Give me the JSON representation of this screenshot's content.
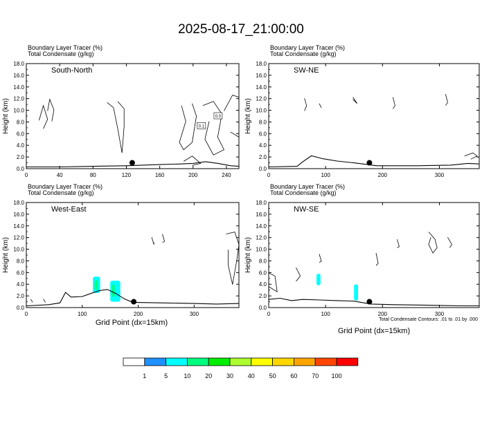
{
  "title": "2025-08-17_21:00:00",
  "panel_header_line1": "Boundary Layer Tracer   (%)",
  "panel_header_line2": "Total Condensate   (g/kg)",
  "y_axis_label": "Height (km)",
  "x_axis_label": "Grid Point (dx=15km)",
  "contour_note": "Total Condensate Contours: .01 to .01 by .000",
  "colors": {
    "terrain": "#000000",
    "contour": "#000000",
    "marker": "#000000"
  },
  "chart_data": [
    {
      "type": "area",
      "panel": "South-North",
      "label": "South-North",
      "xlim": [
        0,
        255
      ],
      "ylim": [
        0,
        18
      ],
      "x_ticks": [
        0,
        40,
        80,
        120,
        160,
        200,
        240
      ],
      "y_ticks": [
        "0.0",
        "2.0",
        "4.0",
        "6.0",
        "8.0",
        "10.0",
        "12.0",
        "14.0",
        "16.0",
        "18.0"
      ],
      "terrain": [
        [
          0,
          0.3
        ],
        [
          40,
          0.3
        ],
        [
          80,
          0.4
        ],
        [
          120,
          0.5
        ],
        [
          160,
          0.7
        ],
        [
          185,
          0.8
        ],
        [
          200,
          0.9
        ],
        [
          215,
          1.2
        ],
        [
          230,
          0.9
        ],
        [
          245,
          0.5
        ],
        [
          255,
          0.4
        ]
      ],
      "marker": {
        "x": 127,
        "y": 1.0
      },
      "contour_labels": [
        {
          "text": "0.0",
          "x": 230,
          "y": 9.0
        },
        {
          "text": "0.1",
          "x": 210,
          "y": 7.3
        }
      ],
      "tracer_blobs": []
    },
    {
      "type": "area",
      "panel": "SW-NE",
      "label": "SW-NE",
      "xlim": [
        0,
        370
      ],
      "ylim": [
        0,
        18
      ],
      "x_ticks": [
        0,
        100,
        200,
        300
      ],
      "y_ticks": [
        "0.0",
        "2.0",
        "4.0",
        "6.0",
        "8.0",
        "10.0",
        "12.0",
        "14.0",
        "16.0",
        "18.0"
      ],
      "terrain": [
        [
          0,
          0.3
        ],
        [
          50,
          0.4
        ],
        [
          60,
          1.2
        ],
        [
          75,
          2.2
        ],
        [
          95,
          1.7
        ],
        [
          120,
          1.3
        ],
        [
          150,
          1.0
        ],
        [
          190,
          0.5
        ],
        [
          260,
          0.5
        ],
        [
          320,
          0.6
        ],
        [
          350,
          0.9
        ],
        [
          370,
          0.8
        ]
      ],
      "marker": {
        "x": 177,
        "y": 1.0
      },
      "contour_labels": [],
      "tracer_blobs": []
    },
    {
      "type": "area",
      "panel": "West-East",
      "label": "West-East",
      "xlim": [
        0,
        380
      ],
      "ylim": [
        0,
        18
      ],
      "x_ticks": [
        0,
        100,
        200,
        300
      ],
      "y_ticks": [
        "0.0",
        "2.0",
        "4.0",
        "6.0",
        "8.0",
        "10.0",
        "12.0",
        "14.0",
        "16.0",
        "18.0"
      ],
      "terrain": [
        [
          0,
          0.3
        ],
        [
          40,
          0.5
        ],
        [
          60,
          0.8
        ],
        [
          70,
          2.6
        ],
        [
          80,
          1.8
        ],
        [
          100,
          1.9
        ],
        [
          115,
          2.4
        ],
        [
          130,
          2.9
        ],
        [
          145,
          3.1
        ],
        [
          160,
          2.4
        ],
        [
          175,
          1.5
        ],
        [
          190,
          0.9
        ],
        [
          240,
          0.8
        ],
        [
          300,
          0.7
        ],
        [
          340,
          0.6
        ],
        [
          380,
          0.7
        ]
      ],
      "marker": {
        "x": 192,
        "y": 1.0
      },
      "contour_labels": [],
      "tracer_blobs": [
        {
          "x0": 119,
          "x1": 132,
          "y0": 2.5,
          "y1": 5.3,
          "percent": 5
        },
        {
          "x0": 122,
          "x1": 128,
          "y0": 3.0,
          "y1": 4.7,
          "percent": 10
        },
        {
          "x0": 150,
          "x1": 168,
          "y0": 1.0,
          "y1": 4.6,
          "percent": 5
        },
        {
          "x0": 153,
          "x1": 158,
          "y0": 1.8,
          "y1": 4.0,
          "percent": 10
        }
      ]
    },
    {
      "type": "area",
      "panel": "NW-SE",
      "label": "NW-SE",
      "xlim": [
        0,
        370
      ],
      "ylim": [
        0,
        18
      ],
      "x_ticks": [
        0,
        100,
        200,
        300
      ],
      "y_ticks": [
        "0.0",
        "2.0",
        "4.0",
        "6.0",
        "8.0",
        "10.0",
        "12.0",
        "14.0",
        "16.0",
        "18.0"
      ],
      "terrain": [
        [
          0,
          1.4
        ],
        [
          20,
          1.6
        ],
        [
          40,
          1.2
        ],
        [
          60,
          1.4
        ],
        [
          90,
          1.3
        ],
        [
          120,
          1.2
        ],
        [
          150,
          1.1
        ],
        [
          180,
          0.6
        ],
        [
          220,
          0.5
        ],
        [
          280,
          0.4
        ],
        [
          340,
          0.3
        ],
        [
          370,
          0.3
        ]
      ],
      "marker": {
        "x": 177,
        "y": 1.0
      },
      "contour_labels": [],
      "tracer_blobs": [
        {
          "x0": 84,
          "x1": 91,
          "y0": 3.8,
          "y1": 5.8,
          "percent": 5
        },
        {
          "x0": 150,
          "x1": 157,
          "y0": 1.2,
          "y1": 4.0,
          "percent": 5
        }
      ]
    }
  ],
  "colorbar": {
    "colors": [
      "#ffffff",
      "#1e90ff",
      "#00ffff",
      "#00ff7f",
      "#00ee00",
      "#adff2f",
      "#ffff00",
      "#ffd700",
      "#ffa500",
      "#ff4500",
      "#ff0000"
    ],
    "labels": [
      "1",
      "5",
      "10",
      "20",
      "30",
      "40",
      "50",
      "60",
      "70",
      "100"
    ]
  }
}
